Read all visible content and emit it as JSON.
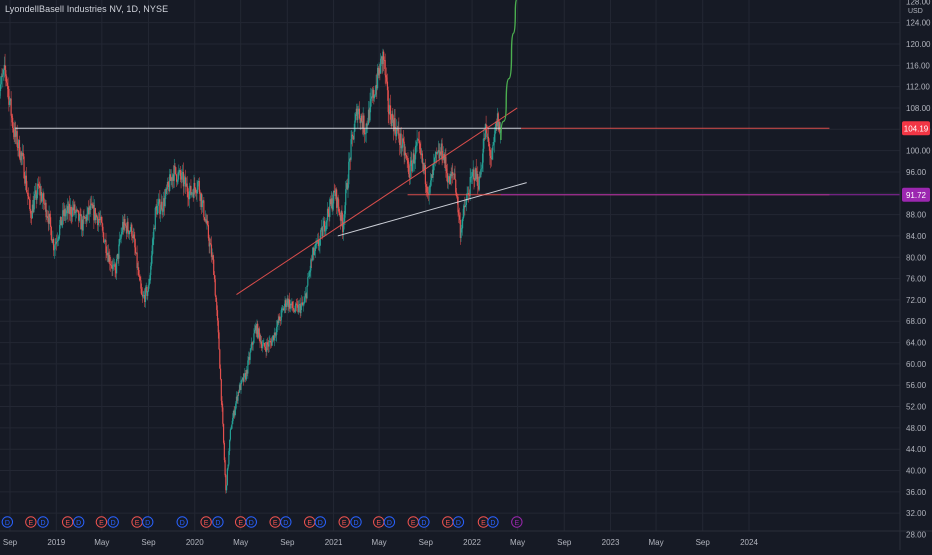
{
  "header": {
    "symbol": "LyondellBasell Industries NV, 1D, NYSE"
  },
  "colors": {
    "background": "#161a25",
    "grid": "#232733",
    "axis_text": "#b2b5be",
    "candle_up": "#26a69a",
    "candle_down": "#ef5350",
    "trendline_white": "#e0e3eb",
    "trendline_red": "#ef5350",
    "projection_green": "#4caf50",
    "resistance_badge": "#f23645",
    "support_badge": "#9c27b0"
  },
  "chart_data": {
    "type": "candlestick",
    "currency": "USD",
    "y_ticks": [
      "28.00",
      "32.00",
      "36.00",
      "40.00",
      "44.00",
      "48.00",
      "52.00",
      "56.00",
      "60.00",
      "64.00",
      "68.00",
      "72.00",
      "76.00",
      "80.00",
      "84.00",
      "88.00",
      "92.00",
      "96.00",
      "100.00",
      "104.00",
      "108.00",
      "112.00",
      "116.00",
      "120.00",
      "124.00",
      "128.00"
    ],
    "x_ticks": [
      {
        "label": "Sep",
        "date": "2018-09-01"
      },
      {
        "label": "2019",
        "date": "2019-01-01"
      },
      {
        "label": "May",
        "date": "2019-05-01"
      },
      {
        "label": "Sep",
        "date": "2019-09-01"
      },
      {
        "label": "2020",
        "date": "2020-01-01"
      },
      {
        "label": "May",
        "date": "2020-05-01"
      },
      {
        "label": "Sep",
        "date": "2020-09-01"
      },
      {
        "label": "2021",
        "date": "2021-01-01"
      },
      {
        "label": "May",
        "date": "2021-05-01"
      },
      {
        "label": "Sep",
        "date": "2021-09-01"
      },
      {
        "label": "2022",
        "date": "2022-01-01"
      },
      {
        "label": "May",
        "date": "2022-05-01"
      },
      {
        "label": "Sep",
        "date": "2022-09-01"
      },
      {
        "label": "2023",
        "date": "2023-01-01"
      },
      {
        "label": "May",
        "date": "2023-05-01"
      },
      {
        "label": "Sep",
        "date": "2023-09-01"
      },
      {
        "label": "2024",
        "date": "2024-01-01"
      }
    ],
    "price_path": [
      [
        "2018-08-01",
        111
      ],
      [
        "2018-08-20",
        115
      ],
      [
        "2018-09-10",
        104
      ],
      [
        "2018-10-05",
        98
      ],
      [
        "2018-10-25",
        88
      ],
      [
        "2018-11-15",
        93
      ],
      [
        "2018-12-10",
        88
      ],
      [
        "2018-12-26",
        82
      ],
      [
        "2019-01-20",
        88
      ],
      [
        "2019-02-15",
        89
      ],
      [
        "2019-03-10",
        86
      ],
      [
        "2019-04-01",
        89
      ],
      [
        "2019-04-25",
        87
      ],
      [
        "2019-05-20",
        80
      ],
      [
        "2019-06-05",
        77
      ],
      [
        "2019-06-25",
        86
      ],
      [
        "2019-07-20",
        85
      ],
      [
        "2019-08-15",
        72
      ],
      [
        "2019-09-01",
        74
      ],
      [
        "2019-09-20",
        89
      ],
      [
        "2019-10-10",
        90
      ],
      [
        "2019-11-05",
        96
      ],
      [
        "2019-11-25",
        95
      ],
      [
        "2019-12-20",
        92
      ],
      [
        "2020-01-10",
        94
      ],
      [
        "2020-02-01",
        86
      ],
      [
        "2020-02-20",
        78
      ],
      [
        "2020-03-05",
        63
      ],
      [
        "2020-03-23",
        36
      ],
      [
        "2020-04-05",
        48
      ],
      [
        "2020-04-25",
        55
      ],
      [
        "2020-05-15",
        58
      ],
      [
        "2020-06-10",
        67
      ],
      [
        "2020-06-30",
        63
      ],
      [
        "2020-07-20",
        64
      ],
      [
        "2020-08-10",
        68
      ],
      [
        "2020-08-30",
        72
      ],
      [
        "2020-09-20",
        70
      ],
      [
        "2020-10-15",
        71
      ],
      [
        "2020-11-05",
        80
      ],
      [
        "2020-11-25",
        83
      ],
      [
        "2020-12-15",
        88
      ],
      [
        "2021-01-05",
        92
      ],
      [
        "2021-01-25",
        86
      ],
      [
        "2021-02-15",
        100
      ],
      [
        "2021-03-05",
        108
      ],
      [
        "2021-03-25",
        104
      ],
      [
        "2021-04-15",
        110
      ],
      [
        "2021-05-05",
        116
      ],
      [
        "2021-05-12",
        118
      ],
      [
        "2021-05-25",
        108
      ],
      [
        "2021-06-15",
        104
      ],
      [
        "2021-07-05",
        100
      ],
      [
        "2021-07-20",
        96
      ],
      [
        "2021-08-10",
        101
      ],
      [
        "2021-08-25",
        97
      ],
      [
        "2021-09-10",
        92
      ],
      [
        "2021-09-25",
        98
      ],
      [
        "2021-10-15",
        100
      ],
      [
        "2021-11-01",
        94
      ],
      [
        "2021-11-15",
        96
      ],
      [
        "2021-12-01",
        85
      ],
      [
        "2021-12-15",
        90
      ],
      [
        "2022-01-05",
        96
      ],
      [
        "2022-01-20",
        94
      ],
      [
        "2022-02-05",
        104
      ],
      [
        "2022-02-22",
        98
      ],
      [
        "2022-03-08",
        106
      ],
      [
        "2022-03-18",
        103
      ]
    ],
    "projection": [
      [
        "2022-03-18",
        102
      ],
      [
        "2022-04-01",
        109
      ],
      [
        "2022-04-15",
        118
      ],
      [
        "2022-04-25",
        126
      ],
      [
        "2022-05-05",
        131
      ]
    ],
    "trendlines": [
      {
        "color": "white",
        "from": [
          "2018-09-15",
          104.2
        ],
        "to": [
          "2022-05-10",
          104.2
        ]
      },
      {
        "color": "red",
        "from": [
          "2020-04-20",
          73
        ],
        "to": [
          "2022-04-30",
          108
        ]
      },
      {
        "color": "white",
        "from": [
          "2021-01-12",
          84
        ],
        "to": [
          "2022-05-25",
          94
        ]
      },
      {
        "color": "red",
        "from": [
          "2021-07-15",
          91.72
        ],
        "to": [
          "2024-07-31",
          91.72
        ]
      },
      {
        "color": "red",
        "from": [
          "2022-05-10",
          104.19
        ],
        "to": [
          "2024-07-31",
          104.19
        ]
      }
    ],
    "price_labels": [
      {
        "value": "104.19",
        "price": 104.19,
        "color": "#f23645"
      },
      {
        "value": "91.72",
        "price": 91.72,
        "color": "#9c27b0"
      }
    ],
    "events": [
      {
        "letter": "D",
        "date": "2018-08-25"
      },
      {
        "letter": "E",
        "date": "2018-10-26"
      },
      {
        "letter": "D",
        "date": "2018-11-27"
      },
      {
        "letter": "E",
        "date": "2019-01-31"
      },
      {
        "letter": "D",
        "date": "2019-03-01"
      },
      {
        "letter": "E",
        "date": "2019-04-30"
      },
      {
        "letter": "D",
        "date": "2019-05-31"
      },
      {
        "letter": "E",
        "date": "2019-08-02"
      },
      {
        "letter": "D",
        "date": "2019-08-30"
      },
      {
        "letter": "D",
        "date": "2019-11-29"
      },
      {
        "letter": "E",
        "date": "2020-01-31"
      },
      {
        "letter": "D",
        "date": "2020-03-02"
      },
      {
        "letter": "E",
        "date": "2020-05-01"
      },
      {
        "letter": "D",
        "date": "2020-05-29"
      },
      {
        "letter": "E",
        "date": "2020-07-31"
      },
      {
        "letter": "D",
        "date": "2020-08-28"
      },
      {
        "letter": "E",
        "date": "2020-10-30"
      },
      {
        "letter": "D",
        "date": "2020-11-27"
      },
      {
        "letter": "E",
        "date": "2021-01-29"
      },
      {
        "letter": "D",
        "date": "2021-03-01"
      },
      {
        "letter": "E",
        "date": "2021-04-30"
      },
      {
        "letter": "D",
        "date": "2021-05-28"
      },
      {
        "letter": "E",
        "date": "2021-07-30"
      },
      {
        "letter": "D",
        "date": "2021-08-27"
      },
      {
        "letter": "E",
        "date": "2021-10-29"
      },
      {
        "letter": "D",
        "date": "2021-11-26"
      },
      {
        "letter": "E",
        "date": "2022-01-31"
      },
      {
        "letter": "D",
        "date": "2022-02-25"
      },
      {
        "letter": "E",
        "date": "2022-04-29"
      }
    ]
  }
}
